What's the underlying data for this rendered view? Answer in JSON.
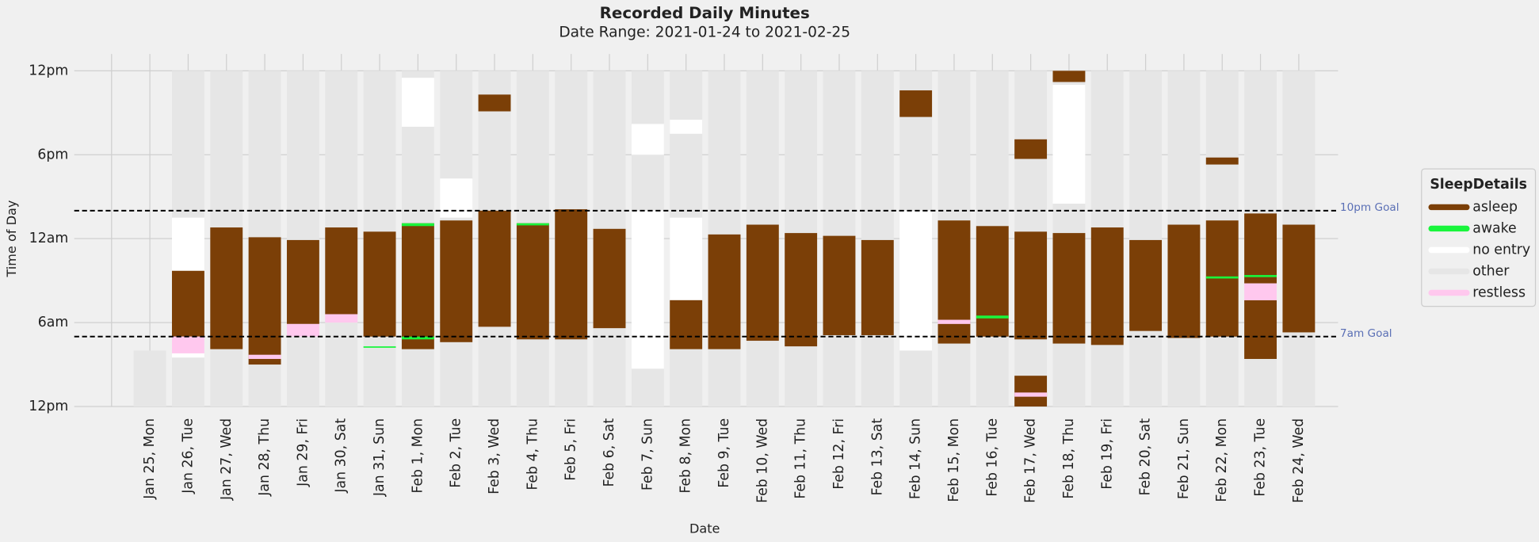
{
  "chart_data": {
    "type": "timeline",
    "title": "Recorded Daily Minutes",
    "subtitle": "Date Range: 2021-01-24 to 2021-02-25",
    "x_label": "Date",
    "y_label": "Time of Day",
    "legend_title": "SleepDetails",
    "legend_position": "right",
    "grid": true,
    "ylim": [
      24,
      -1.2
    ],
    "yticks": [
      {
        "value": 0,
        "label": "12pm"
      },
      {
        "value": 6,
        "label": "6pm"
      },
      {
        "value": 12,
        "label": "12am"
      },
      {
        "value": 18,
        "label": "6am"
      },
      {
        "value": 24,
        "label": "12pm"
      }
    ],
    "reference_lines": [
      {
        "value": 10,
        "label": "10pm Goal"
      },
      {
        "value": 19,
        "label": "7am Goal"
      }
    ],
    "categories": [
      null,
      "Jan 25, Mon",
      "Jan 26, Tue",
      "Jan 27, Wed",
      "Jan 28, Thu",
      "Jan 29, Fri",
      "Jan 30, Sat",
      "Jan 31, Sun",
      "Feb 1, Mon",
      "Feb 2, Tue",
      "Feb 3, Wed",
      "Feb 4, Thu",
      "Feb 5, Fri",
      "Feb 6, Sat",
      "Feb 7, Sun",
      "Feb 8, Mon",
      "Feb 9, Tue",
      "Feb 10, Wed",
      "Feb 11, Thu",
      "Feb 12, Fri",
      "Feb 13, Sat",
      "Feb 14, Sun",
      "Feb 15, Mon",
      "Feb 16, Tue",
      "Feb 17, Wed",
      "Feb 18, Thu",
      "Feb 19, Fri",
      "Feb 20, Sat",
      "Feb 21, Sun",
      "Feb 22, Mon",
      "Feb 23, Tue",
      "Feb 24, Wed"
    ],
    "series": [
      {
        "name": "asleep",
        "color": "#7b3f07",
        "values": [
          [],
          [],
          [
            [
              14.3,
              19.0
            ]
          ],
          [
            [
              11.2,
              19.9
            ]
          ],
          [
            [
              11.9,
              21.0
            ]
          ],
          [
            [
              12.1,
              18.1
            ]
          ],
          [
            [
              11.2,
              17.4
            ]
          ],
          [
            [
              11.5,
              19.0
            ]
          ],
          [
            [
              10.9,
              19.9
            ]
          ],
          [
            [
              10.7,
              19.4
            ]
          ],
          [
            [
              1.7,
              2.9
            ],
            [
              10.0,
              18.3
            ]
          ],
          [
            [
              10.9,
              19.2
            ]
          ],
          [
            [
              9.9,
              19.2
            ]
          ],
          [
            [
              11.3,
              18.4
            ]
          ],
          [],
          [
            [
              16.4,
              19.9
            ]
          ],
          [
            [
              11.7,
              19.9
            ]
          ],
          [
            [
              11.0,
              19.3
            ]
          ],
          [
            [
              11.6,
              19.7
            ]
          ],
          [
            [
              11.8,
              18.9
            ]
          ],
          [
            [
              12.1,
              18.9
            ]
          ],
          [
            [
              1.4,
              3.3
            ]
          ],
          [
            [
              10.7,
              19.5
            ]
          ],
          [
            [
              11.1,
              19.0
            ]
          ],
          [
            [
              4.9,
              6.3
            ],
            [
              11.5,
              19.2
            ],
            [
              21.8,
              24
            ]
          ],
          [
            [
              0,
              0.8
            ],
            [
              11.6,
              19.5
            ]
          ],
          [
            [
              11.2,
              19.6
            ]
          ],
          [
            [
              12.1,
              18.6
            ]
          ],
          [
            [
              11.0,
              19.1
            ]
          ],
          [
            [
              6.2,
              6.7
            ],
            [
              10.7,
              19.0
            ]
          ],
          [
            [
              10.2,
              15.2
            ],
            [
              16.4,
              20.6
            ]
          ],
          [
            [
              11.0,
              18.7
            ]
          ]
        ]
      },
      {
        "name": "awake",
        "color": "#19f53c",
        "values": [
          [],
          [],
          [],
          [],
          [],
          [],
          [],
          [
            [
              19.7,
              19.8
            ]
          ],
          [
            [
              10.9,
              11.1
            ],
            [
              19.0,
              19.2
            ]
          ],
          [],
          [],
          [
            [
              10.9,
              11.05
            ]
          ],
          [],
          [],
          [],
          [],
          [],
          [],
          [],
          [],
          [],
          [],
          [],
          [
            [
              17.5,
              17.7
            ]
          ],
          [],
          [],
          [],
          [],
          [],
          [
            [
              14.7,
              14.85
            ]
          ],
          [
            [
              14.6,
              14.75
            ]
          ],
          []
        ]
      },
      {
        "name": "no entry",
        "color": "#ffffff",
        "values": [
          [],
          [],
          [
            [
              10.5,
              14.3
            ],
            [
              19.0,
              20.5
            ]
          ],
          [],
          [],
          [],
          [],
          [],
          [
            [
              0.5,
              4.0
            ]
          ],
          [
            [
              7.7,
              10.5
            ]
          ],
          [],
          [],
          [],
          [],
          [
            [
              3.8,
              6.0
            ],
            [
              10.0,
              21.3
            ]
          ],
          [
            [
              3.5,
              4.5
            ],
            [
              10.5,
              16.4
            ]
          ],
          [],
          [],
          [],
          [],
          [],
          [
            [
              10.0,
              20.0
            ]
          ],
          [],
          [],
          [],
          [
            [
              1.0,
              9.5
            ]
          ],
          [],
          [],
          [],
          [],
          [],
          []
        ]
      },
      {
        "name": "other",
        "color": "#e6e6e6",
        "values": [
          [],
          [
            [
              20.0,
              24
            ]
          ],
          [
            [
              0,
              24
            ]
          ],
          [
            [
              0,
              24
            ]
          ],
          [
            [
              0,
              24
            ]
          ],
          [
            [
              0,
              24
            ]
          ],
          [
            [
              0,
              24
            ]
          ],
          [
            [
              0,
              24
            ]
          ],
          [
            [
              0,
              24
            ]
          ],
          [
            [
              0,
              24
            ]
          ],
          [
            [
              0,
              24
            ]
          ],
          [
            [
              0,
              24
            ]
          ],
          [
            [
              0,
              24
            ]
          ],
          [
            [
              0,
              24
            ]
          ],
          [
            [
              0,
              24
            ]
          ],
          [
            [
              0,
              24
            ]
          ],
          [
            [
              0,
              24
            ]
          ],
          [
            [
              0,
              24
            ]
          ],
          [
            [
              0,
              24
            ]
          ],
          [
            [
              0,
              24
            ]
          ],
          [
            [
              0,
              24
            ]
          ],
          [
            [
              0,
              24
            ]
          ],
          [
            [
              0,
              24
            ]
          ],
          [
            [
              0,
              24
            ]
          ],
          [
            [
              0,
              24
            ]
          ],
          [
            [
              0,
              24
            ]
          ],
          [
            [
              0,
              24
            ]
          ],
          [
            [
              0,
              24
            ]
          ],
          [
            [
              0,
              24
            ]
          ],
          [
            [
              0,
              24
            ]
          ],
          [
            [
              0,
              24
            ]
          ],
          [
            [
              0,
              24
            ]
          ]
        ]
      },
      {
        "name": "restless",
        "color": "#ffc8ee",
        "values": [
          [],
          [],
          [
            [
              19.0,
              20.2
            ]
          ],
          [],
          [
            [
              20.3,
              20.6
            ]
          ],
          [
            [
              18.1,
              19.0
            ]
          ],
          [
            [
              17.4,
              18.0
            ]
          ],
          [],
          [],
          [],
          [],
          [],
          [],
          [],
          [],
          [],
          [],
          [],
          [],
          [],
          [],
          [],
          [
            [
              17.8,
              18.1
            ]
          ],
          [],
          [
            [
              23.0,
              23.3
            ]
          ],
          [],
          [],
          [],
          [],
          [],
          [
            [
              15.2,
              16.4
            ]
          ],
          []
        ]
      }
    ]
  }
}
